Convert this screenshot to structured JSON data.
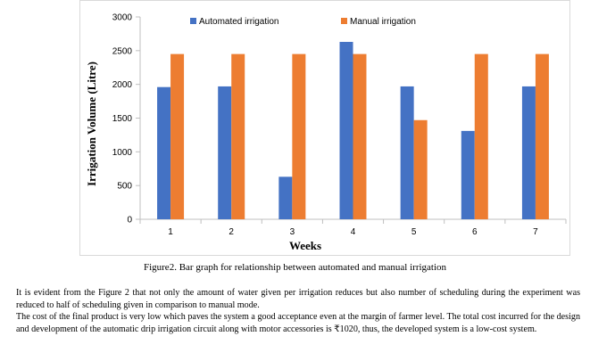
{
  "chart_data": {
    "type": "bar",
    "title": "",
    "xlabel": "Weeks",
    "ylabel": "Irrigation Volume (Litre)",
    "categories": [
      "1",
      "2",
      "3",
      "4",
      "5",
      "6",
      "7"
    ],
    "series": [
      {
        "name": "Automated irrigation",
        "color": "#4472c4",
        "values": [
          1960,
          1970,
          630,
          2630,
          1970,
          1310,
          1970
        ]
      },
      {
        "name": "Manual irrigation",
        "color": "#ed7d31",
        "values": [
          2450,
          2450,
          2450,
          2450,
          1470,
          2450,
          2450
        ]
      }
    ],
    "yticks": [
      "0",
      "500",
      "1000",
      "1500",
      "2000",
      "2500",
      "3000"
    ],
    "ylim": [
      0,
      3000
    ],
    "grid": false,
    "legend_position": "top"
  },
  "caption": "Figure2. Bar graph for relationship between automated and manual irrigation",
  "paragraphs": [
    "It is evident from the Figure 2 that not only the amount of water given per irrigation reduces but also number of scheduling during the experiment was reduced to half of scheduling given in comparison to manual mode.",
    "The cost of the final product is very low which paves the system a good acceptance even at the margin of farmer level. The total cost incurred for the design and development of the   automatic drip irrigation circuit along with motor accessories is ₹1020, thus, the developed system is a low-cost system."
  ]
}
